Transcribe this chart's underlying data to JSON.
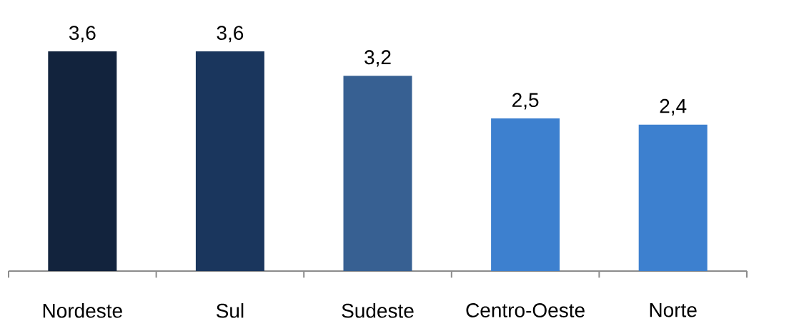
{
  "chart_data": {
    "type": "bar",
    "categories": [
      "Nordeste",
      "Sul",
      "Sudeste",
      "Centro-Oeste",
      "Norte"
    ],
    "values": [
      3.6,
      3.6,
      3.2,
      2.5,
      2.4
    ],
    "colors": [
      "#12233d",
      "#1a365d",
      "#376092",
      "#3d80cf",
      "#3d80cf"
    ],
    "value_labels": [
      "3,6",
      "3,6",
      "3,2",
      "2,5",
      "2,4"
    ],
    "tick_labels": "x"
  }
}
